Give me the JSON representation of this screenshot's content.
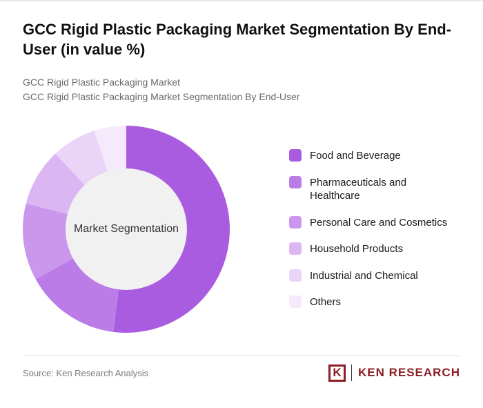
{
  "header": {
    "title": "GCC Rigid Plastic Packaging Market Segmentation By End-User (in value %)",
    "subtitle1": "GCC Rigid Plastic Packaging Market",
    "subtitle2": "GCC Rigid Plastic Packaging Market Segmentation By End-User"
  },
  "chart_data": {
    "type": "pie",
    "style": "donut",
    "title": "GCC Rigid Plastic Packaging Market Segmentation By End-User (in value %)",
    "center_label": "Market Segmentation",
    "center_color": "#f1f1f2",
    "categories": [
      "Food and Beverage",
      "Pharmaceuticals and Healthcare",
      "Personal Care and Cosmetics",
      "Household Products",
      "Industrial and Chemical",
      "Others"
    ],
    "values": [
      52,
      15,
      12,
      9,
      7,
      5
    ],
    "colors": [
      "#a95ce0",
      "#bb7ce8",
      "#cb97ed",
      "#dcb5f3",
      "#ead4f8",
      "#f5eafc"
    ],
    "legend_position": "right",
    "start_angle_deg": -90,
    "direction": "clockwise"
  },
  "footer": {
    "source": "Source: Ken Research Analysis",
    "logo": {
      "icon_letter": "K",
      "brand": "KEN RESEARCH",
      "color": "#8e1c24"
    }
  }
}
